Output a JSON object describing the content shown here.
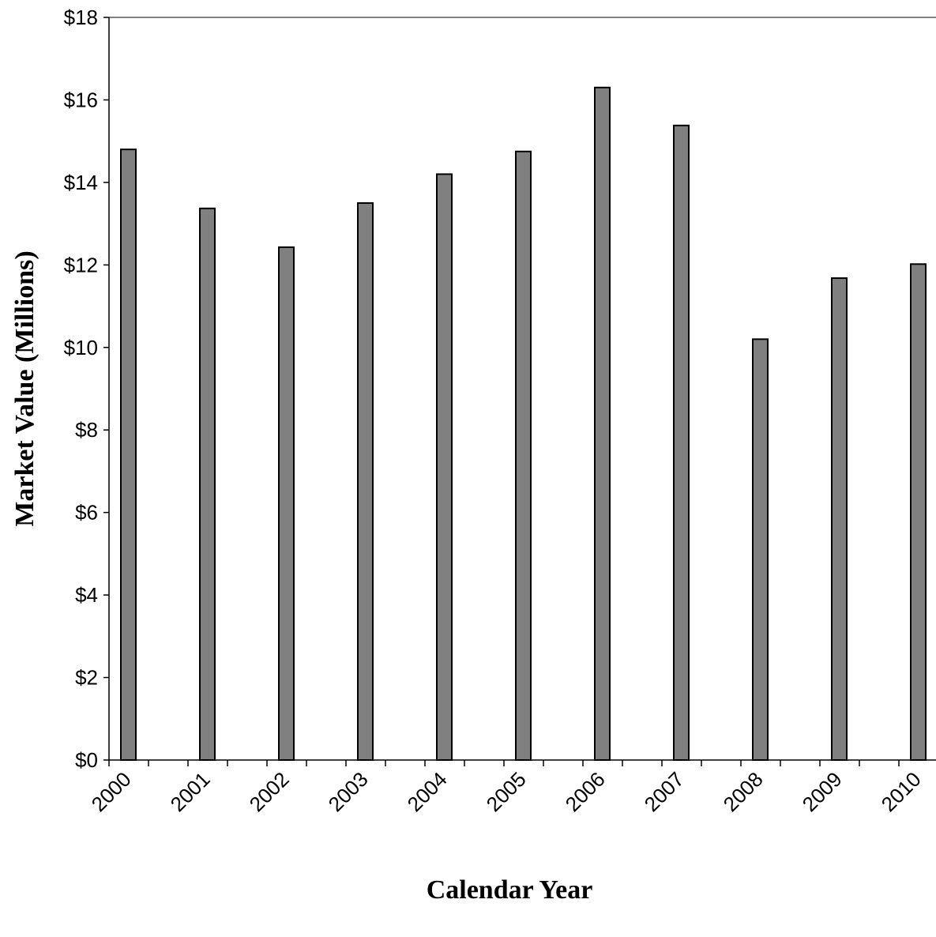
{
  "chart_data": {
    "type": "bar",
    "title": "",
    "xlabel": "Calendar Year",
    "ylabel": "Market Value (Millions)",
    "categories": [
      "2000",
      "2001",
      "2002",
      "2003",
      "2004",
      "2005",
      "2006",
      "2007",
      "2008",
      "2009",
      "2010"
    ],
    "values": [
      14.8,
      13.37,
      12.43,
      13.5,
      14.2,
      14.75,
      16.3,
      15.38,
      10.2,
      11.68,
      12.02
    ],
    "ylim": [
      0,
      18
    ],
    "yticks": [
      0,
      2,
      4,
      6,
      8,
      10,
      12,
      14,
      16,
      18
    ],
    "ytick_labels": [
      "$0",
      "$2",
      "$4",
      "$6",
      "$8",
      "$10",
      "$12",
      "$14",
      "$16",
      "$18"
    ],
    "grid": false,
    "bar_color": "#808080",
    "bar_edge_color": "#000000"
  }
}
